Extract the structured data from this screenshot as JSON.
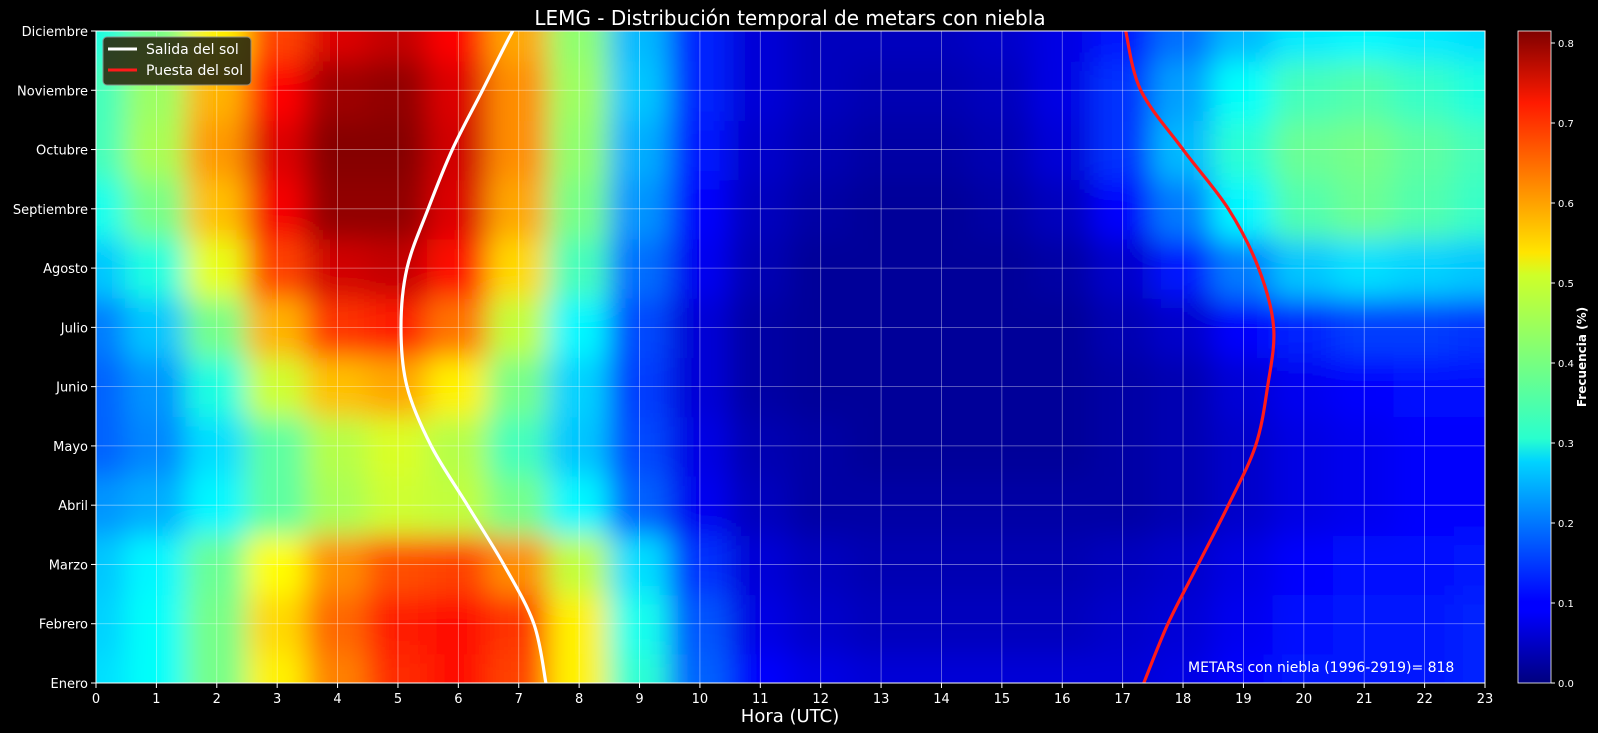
{
  "chart_data": {
    "type": "heatmap",
    "title": "LEMG - Distribución temporal de metars con niebla",
    "xlabel": "Hora (UTC)",
    "ylabel": "",
    "x_ticks": [
      "0",
      "1",
      "2",
      "3",
      "4",
      "5",
      "6",
      "7",
      "8",
      "9",
      "10",
      "11",
      "12",
      "13",
      "14",
      "15",
      "16",
      "17",
      "18",
      "19",
      "20",
      "21",
      "22",
      "23"
    ],
    "xlim": [
      0,
      23
    ],
    "y_ticks": [
      "Enero",
      "Febrero",
      "Marzo",
      "Abril",
      "Mayo",
      "Junio",
      "Julio",
      "Agosto",
      "Septiembre",
      "Octubre",
      "Noviembre",
      "Diciembre"
    ],
    "colorbar": {
      "label": "Frecuencia  (%)",
      "ticks": [
        "0.0",
        "0.1",
        "0.2",
        "0.3",
        "0.4",
        "0.5",
        "0.6",
        "0.7",
        "0.8"
      ],
      "range": [
        0,
        0.815
      ],
      "colormap": "jet"
    },
    "grid": true,
    "legend_position": "top-left",
    "annotation": "METARs con niebla (1996-2919)= 818",
    "heatmap_description": "Values estimated per hour (columns 0-23) for each month (rows Enero..Diciembre)",
    "heatmap_values": [
      [
        0.28,
        0.31,
        0.4,
        0.52,
        0.61,
        0.68,
        0.7,
        0.66,
        0.52,
        0.34,
        0.18,
        0.1,
        0.08,
        0.07,
        0.07,
        0.07,
        0.07,
        0.07,
        0.08,
        0.1,
        0.12,
        0.12,
        0.12,
        0.13
      ],
      [
        0.27,
        0.31,
        0.4,
        0.54,
        0.63,
        0.69,
        0.7,
        0.67,
        0.52,
        0.32,
        0.17,
        0.08,
        0.06,
        0.05,
        0.05,
        0.05,
        0.05,
        0.06,
        0.07,
        0.09,
        0.11,
        0.12,
        0.12,
        0.13
      ],
      [
        0.26,
        0.3,
        0.39,
        0.51,
        0.6,
        0.65,
        0.66,
        0.6,
        0.46,
        0.28,
        0.14,
        0.07,
        0.05,
        0.04,
        0.04,
        0.04,
        0.04,
        0.05,
        0.06,
        0.08,
        0.1,
        0.11,
        0.11,
        0.12
      ],
      [
        0.22,
        0.24,
        0.3,
        0.38,
        0.44,
        0.47,
        0.46,
        0.4,
        0.3,
        0.18,
        0.09,
        0.05,
        0.03,
        0.03,
        0.03,
        0.03,
        0.03,
        0.03,
        0.04,
        0.06,
        0.08,
        0.09,
        0.1,
        0.1
      ],
      [
        0.18,
        0.21,
        0.28,
        0.38,
        0.45,
        0.48,
        0.45,
        0.36,
        0.26,
        0.16,
        0.08,
        0.04,
        0.03,
        0.02,
        0.02,
        0.02,
        0.02,
        0.03,
        0.04,
        0.06,
        0.08,
        0.09,
        0.1,
        0.1
      ],
      [
        0.18,
        0.22,
        0.33,
        0.47,
        0.56,
        0.58,
        0.52,
        0.4,
        0.27,
        0.15,
        0.07,
        0.03,
        0.02,
        0.02,
        0.02,
        0.02,
        0.02,
        0.03,
        0.04,
        0.07,
        0.09,
        0.1,
        0.11,
        0.11
      ],
      [
        0.2,
        0.26,
        0.4,
        0.57,
        0.67,
        0.69,
        0.62,
        0.46,
        0.3,
        0.16,
        0.07,
        0.03,
        0.02,
        0.02,
        0.02,
        0.02,
        0.02,
        0.04,
        0.06,
        0.1,
        0.13,
        0.15,
        0.15,
        0.14
      ],
      [
        0.26,
        0.33,
        0.49,
        0.66,
        0.75,
        0.76,
        0.7,
        0.54,
        0.36,
        0.19,
        0.09,
        0.04,
        0.02,
        0.02,
        0.02,
        0.02,
        0.03,
        0.06,
        0.12,
        0.2,
        0.26,
        0.28,
        0.27,
        0.26
      ],
      [
        0.32,
        0.4,
        0.56,
        0.72,
        0.8,
        0.8,
        0.74,
        0.58,
        0.4,
        0.22,
        0.1,
        0.05,
        0.03,
        0.02,
        0.02,
        0.03,
        0.05,
        0.1,
        0.2,
        0.3,
        0.37,
        0.39,
        0.37,
        0.35
      ],
      [
        0.36,
        0.44,
        0.59,
        0.74,
        0.81,
        0.81,
        0.75,
        0.6,
        0.42,
        0.24,
        0.12,
        0.06,
        0.04,
        0.03,
        0.03,
        0.04,
        0.07,
        0.14,
        0.25,
        0.34,
        0.39,
        0.4,
        0.38,
        0.36
      ],
      [
        0.36,
        0.43,
        0.57,
        0.71,
        0.79,
        0.8,
        0.74,
        0.6,
        0.43,
        0.26,
        0.13,
        0.07,
        0.05,
        0.04,
        0.04,
        0.05,
        0.08,
        0.14,
        0.23,
        0.31,
        0.36,
        0.37,
        0.35,
        0.33
      ],
      [
        0.33,
        0.4,
        0.52,
        0.66,
        0.74,
        0.76,
        0.71,
        0.58,
        0.42,
        0.25,
        0.13,
        0.07,
        0.05,
        0.05,
        0.05,
        0.06,
        0.08,
        0.12,
        0.19,
        0.25,
        0.29,
        0.3,
        0.29,
        0.28
      ]
    ],
    "series": [
      {
        "name": "Salida del sol",
        "color": "#ffffff",
        "x": [
          7.45,
          7.25,
          6.75,
          6.15,
          5.55,
          5.15,
          5.05,
          5.15,
          5.5,
          5.9,
          6.4,
          6.9,
          7.0
        ],
        "y": [
          "Enero",
          "Febrero",
          "Marzo",
          "Abril",
          "Mayo",
          "Junio",
          "Julio",
          "Agosto",
          "Septiembre",
          "Octubre",
          "Noviembre",
          "Diciembre",
          "Diciembre"
        ]
      },
      {
        "name": "Puesta del sol",
        "color": "#ff1a1a",
        "x": [
          17.35,
          17.75,
          18.25,
          18.75,
          19.2,
          19.4,
          19.5,
          19.25,
          18.75,
          18.0,
          17.3,
          17.05
        ],
        "y": [
          "Enero",
          "Febrero",
          "Marzo",
          "Abril",
          "Mayo",
          "Junio",
          "Julio",
          "Agosto",
          "Septiembre",
          "Octubre",
          "Noviembre",
          "Diciembre"
        ]
      }
    ]
  }
}
